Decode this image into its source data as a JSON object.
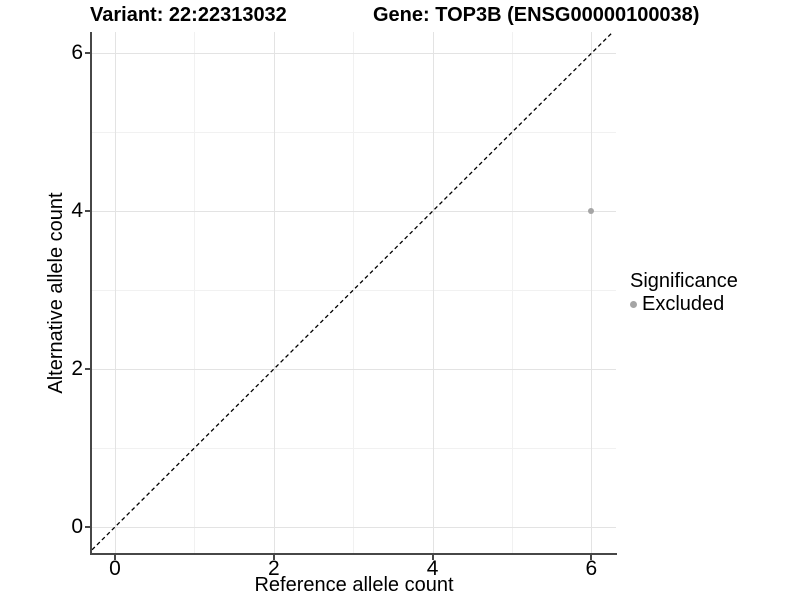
{
  "chart_data": {
    "type": "scatter",
    "title_left": "Variant: 22:22313032",
    "title_right": "Gene: TOP3B (ENSG00000100038)",
    "xlabel": "Reference allele count",
    "ylabel": "Alternative allele count",
    "x_ticks": [
      0,
      2,
      4,
      6
    ],
    "y_ticks": [
      0,
      2,
      4,
      6
    ],
    "x_minor_ticks": [
      1,
      3,
      5
    ],
    "y_minor_ticks": [
      1,
      3,
      5
    ],
    "xlim": [
      -0.29,
      6.31
    ],
    "ylim": [
      -0.33,
      6.27
    ],
    "grid": "major+minor",
    "legend_position": "right",
    "series": [
      {
        "name": "Excluded",
        "color": "#a5a5a5",
        "points": [
          {
            "x": 6,
            "y": 4
          }
        ]
      }
    ],
    "reference_line": {
      "kind": "identity",
      "equation": "y = x",
      "style": "dashed",
      "color": "#000000"
    },
    "legend": {
      "title": "Significance",
      "entries": [
        {
          "label": "Excluded",
          "color": "#a5a5a5"
        }
      ]
    },
    "colors": {
      "grid_major": "#e3e3e3",
      "grid_minor": "#f1f1f1",
      "axis_line": "#474747",
      "text": "#000000"
    }
  }
}
